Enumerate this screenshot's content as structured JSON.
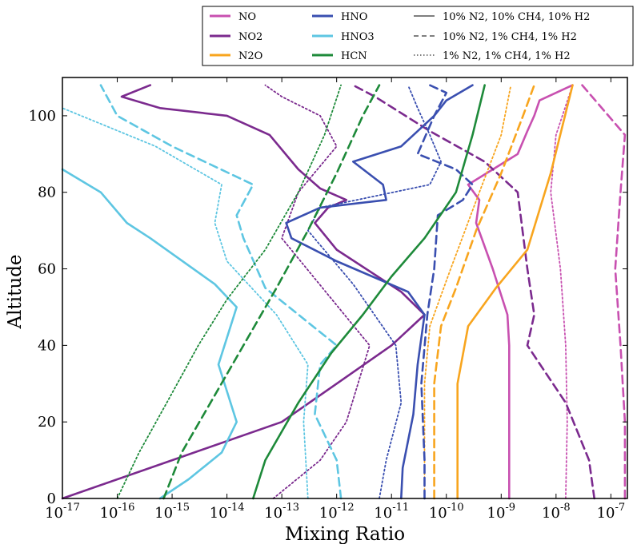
{
  "chart_data": {
    "type": "line",
    "xlabel": "Mixing Ratio",
    "ylabel": "Altitude",
    "xscale": "log",
    "xlim": [
      1e-17,
      2e-07
    ],
    "ylim": [
      0,
      110
    ],
    "grid": false,
    "legend_placement": "top-right, above plot",
    "x_ticks": [
      {
        "value": 1e-17,
        "base": "10",
        "exp": "-17"
      },
      {
        "value": 1e-16,
        "base": "10",
        "exp": "-16"
      },
      {
        "value": 1e-15,
        "base": "10",
        "exp": "-15"
      },
      {
        "value": 1e-14,
        "base": "10",
        "exp": "-14"
      },
      {
        "value": 1e-13,
        "base": "10",
        "exp": "-13"
      },
      {
        "value": 1e-12,
        "base": "10",
        "exp": "-12"
      },
      {
        "value": 1e-11,
        "base": "10",
        "exp": "-11"
      },
      {
        "value": 1e-10,
        "base": "10",
        "exp": "-10"
      },
      {
        "value": 1e-09,
        "base": "10",
        "exp": "-9"
      },
      {
        "value": 1e-08,
        "base": "10",
        "exp": "-8"
      },
      {
        "value": 1e-07,
        "base": "10",
        "exp": "-7"
      }
    ],
    "y_ticks": [
      0,
      20,
      40,
      60,
      80,
      100
    ],
    "species": [
      {
        "name": "NO",
        "color": "#c850b0"
      },
      {
        "name": "NO2",
        "color": "#7b2a8e"
      },
      {
        "name": "N2O",
        "color": "#f8a51e"
      },
      {
        "name": "HNO",
        "color": "#3a4fb0"
      },
      {
        "name": "HNO3",
        "color": "#5ec6e2"
      },
      {
        "name": "HCN",
        "color": "#1e8a3a"
      }
    ],
    "scenarios": [
      {
        "name": "10% N2, 10% CH4, 10% H2",
        "dash": "solid"
      },
      {
        "name": "10% N2, 1% CH4, 1% H2",
        "dash": "dashed"
      },
      {
        "name": "1% N2, 1% CH4, 1% H2",
        "dash": "dotted"
      }
    ],
    "series": [
      {
        "species": "NO",
        "scenario": 0,
        "points": [
          [
            1.4e-09,
            0
          ],
          [
            1.4e-09,
            40
          ],
          [
            1.3e-09,
            48
          ],
          [
            7e-10,
            60
          ],
          [
            3.5e-10,
            72
          ],
          [
            4e-10,
            78
          ],
          [
            2.5e-10,
            82
          ],
          [
            2e-09,
            90
          ],
          [
            3e-09,
            96
          ],
          [
            4e-09,
            100
          ],
          [
            5e-09,
            104
          ],
          [
            2e-08,
            108
          ]
        ]
      },
      {
        "species": "NO",
        "scenario": 1,
        "points": [
          [
            1.8e-07,
            0
          ],
          [
            1.8e-07,
            20
          ],
          [
            1.5e-07,
            40
          ],
          [
            1.2e-07,
            60
          ],
          [
            1.5e-07,
            80
          ],
          [
            1.8e-07,
            95
          ],
          [
            3e-08,
            108
          ]
        ]
      },
      {
        "species": "NO",
        "scenario": 2,
        "points": [
          [
            1.5e-08,
            0
          ],
          [
            1.6e-08,
            20
          ],
          [
            1.5e-08,
            40
          ],
          [
            1.2e-08,
            60
          ],
          [
            8e-09,
            80
          ],
          [
            1e-08,
            95
          ],
          [
            2e-08,
            108
          ]
        ]
      },
      {
        "species": "NO2",
        "scenario": 0,
        "points": [
          [
            1e-17,
            0
          ],
          [
            1e-15,
            10
          ],
          [
            1e-13,
            20
          ],
          [
            1e-12,
            30
          ],
          [
            1e-11,
            40
          ],
          [
            4e-11,
            48
          ],
          [
            1.5e-11,
            54
          ],
          [
            1e-12,
            65
          ],
          [
            4e-13,
            72
          ],
          [
            7e-13,
            76
          ],
          [
            1.5e-12,
            78
          ],
          [
            5e-13,
            81
          ],
          [
            2e-13,
            86
          ],
          [
            6e-14,
            95
          ],
          [
            1e-14,
            100
          ],
          [
            6e-16,
            102
          ],
          [
            1.2e-16,
            105
          ],
          [
            4e-16,
            108
          ]
        ]
      },
      {
        "species": "NO2",
        "scenario": 1,
        "points": [
          [
            5e-08,
            0
          ],
          [
            4e-08,
            10
          ],
          [
            1.5e-08,
            25
          ],
          [
            3e-09,
            40
          ],
          [
            4e-09,
            48
          ],
          [
            3e-09,
            60
          ],
          [
            2e-09,
            80
          ],
          [
            5e-10,
            88
          ],
          [
            5e-11,
            96
          ],
          [
            5e-12,
            105
          ],
          [
            2e-12,
            108
          ]
        ]
      },
      {
        "species": "NO2",
        "scenario": 2,
        "points": [
          [
            7e-14,
            0
          ],
          [
            5e-13,
            10
          ],
          [
            1.5e-12,
            20
          ],
          [
            4e-12,
            40
          ],
          [
            1e-13,
            68
          ],
          [
            2e-13,
            80
          ],
          [
            1e-12,
            92
          ],
          [
            5e-13,
            100
          ],
          [
            1e-13,
            105
          ],
          [
            5e-14,
            108
          ]
        ]
      },
      {
        "species": "N2O",
        "scenario": 0,
        "points": [
          [
            1.6e-10,
            0
          ],
          [
            1.6e-10,
            30
          ],
          [
            2.5e-10,
            45
          ],
          [
            8e-10,
            55
          ],
          [
            3e-09,
            65
          ],
          [
            8e-09,
            85
          ],
          [
            2e-08,
            108
          ]
        ]
      },
      {
        "species": "N2O",
        "scenario": 1,
        "points": [
          [
            6e-11,
            0
          ],
          [
            6e-11,
            30
          ],
          [
            8e-11,
            45
          ],
          [
            1.5e-10,
            55
          ],
          [
            3.5e-10,
            70
          ],
          [
            1e-09,
            85
          ],
          [
            2.5e-09,
            100
          ],
          [
            4e-09,
            108
          ]
        ]
      },
      {
        "species": "N2O",
        "scenario": 2,
        "points": [
          [
            4e-11,
            0
          ],
          [
            4e-11,
            30
          ],
          [
            5e-11,
            45
          ],
          [
            1.2e-10,
            60
          ],
          [
            4e-10,
            80
          ],
          [
            1e-09,
            95
          ],
          [
            1.5e-09,
            108
          ]
        ]
      },
      {
        "species": "HNO",
        "scenario": 0,
        "points": [
          [
            1.5e-11,
            0
          ],
          [
            1.6e-11,
            8
          ],
          [
            2.5e-11,
            22
          ],
          [
            3e-11,
            35
          ],
          [
            4e-11,
            48
          ],
          [
            2e-11,
            54
          ],
          [
            1e-12,
            62
          ],
          [
            1.5e-13,
            68
          ],
          [
            1.2e-13,
            72
          ],
          [
            5e-13,
            76
          ],
          [
            8e-12,
            78
          ],
          [
            7e-12,
            82
          ],
          [
            2e-12,
            88
          ],
          [
            1.5e-11,
            92
          ],
          [
            6e-11,
            100
          ],
          [
            1e-10,
            104
          ],
          [
            3e-10,
            108
          ]
        ]
      },
      {
        "species": "HNO",
        "scenario": 1,
        "points": [
          [
            4e-11,
            0
          ],
          [
            4e-11,
            10
          ],
          [
            3.5e-11,
            30
          ],
          [
            4.5e-11,
            48
          ],
          [
            6e-11,
            60
          ],
          [
            7e-11,
            74
          ],
          [
            2e-10,
            78
          ],
          [
            3e-10,
            82
          ],
          [
            1.5e-10,
            86
          ],
          [
            3e-11,
            90
          ],
          [
            6e-11,
            100
          ],
          [
            1e-10,
            106
          ],
          [
            5e-11,
            108
          ]
        ]
      },
      {
        "species": "HNO",
        "scenario": 2,
        "points": [
          [
            6e-12,
            0
          ],
          [
            8e-12,
            10
          ],
          [
            1.5e-11,
            25
          ],
          [
            1.2e-11,
            40
          ],
          [
            2e-12,
            56
          ],
          [
            3e-13,
            70
          ],
          [
            5e-13,
            76
          ],
          [
            5e-11,
            82
          ],
          [
            8e-11,
            88
          ],
          [
            5e-11,
            95
          ],
          [
            3e-11,
            102
          ],
          [
            2e-11,
            108
          ]
        ]
      },
      {
        "species": "HNO3",
        "scenario": 0,
        "points": [
          [
            6e-16,
            0
          ],
          [
            2e-15,
            5
          ],
          [
            8e-15,
            12
          ],
          [
            1.5e-14,
            20
          ],
          [
            1e-14,
            28
          ],
          [
            7e-15,
            35
          ],
          [
            1e-14,
            42
          ],
          [
            1.5e-14,
            50
          ],
          [
            6e-15,
            56
          ],
          [
            4e-16,
            68
          ],
          [
            1.5e-16,
            72
          ],
          [
            5e-17,
            80
          ],
          [
            1e-17,
            86
          ]
        ]
      },
      {
        "species": "HNO3",
        "scenario": 1,
        "points": [
          [
            1.2e-12,
            0
          ],
          [
            1e-12,
            10
          ],
          [
            4e-13,
            22
          ],
          [
            5e-13,
            35
          ],
          [
            1e-12,
            40
          ],
          [
            5e-14,
            55
          ],
          [
            2e-14,
            68
          ],
          [
            1.5e-14,
            74
          ],
          [
            3e-14,
            82
          ],
          [
            1e-15,
            92
          ],
          [
            1e-16,
            100
          ],
          [
            5e-17,
            108
          ]
        ]
      },
      {
        "species": "HNO3",
        "scenario": 2,
        "points": [
          [
            3e-13,
            0
          ],
          [
            2.5e-13,
            20
          ],
          [
            3e-13,
            35
          ],
          [
            8e-14,
            48
          ],
          [
            1e-14,
            62
          ],
          [
            6e-15,
            72
          ],
          [
            8e-15,
            82
          ],
          [
            5e-16,
            92
          ],
          [
            1e-17,
            102
          ]
        ]
      },
      {
        "species": "HCN",
        "scenario": 0,
        "points": [
          [
            3e-14,
            0
          ],
          [
            5e-14,
            10
          ],
          [
            2e-13,
            25
          ],
          [
            8e-13,
            38
          ],
          [
            3e-12,
            48
          ],
          [
            1e-11,
            58
          ],
          [
            4e-11,
            68
          ],
          [
            1.5e-10,
            80
          ],
          [
            3e-10,
            95
          ],
          [
            5e-10,
            108
          ]
        ]
      },
      {
        "species": "HCN",
        "scenario": 1,
        "points": [
          [
            7e-16,
            0
          ],
          [
            1.5e-15,
            12
          ],
          [
            5e-15,
            25
          ],
          [
            2e-14,
            40
          ],
          [
            8e-14,
            55
          ],
          [
            3e-13,
            70
          ],
          [
            1e-12,
            85
          ],
          [
            3e-12,
            100
          ],
          [
            6e-12,
            108
          ]
        ]
      },
      {
        "species": "HCN",
        "scenario": 2,
        "points": [
          [
            1e-16,
            0
          ],
          [
            2.5e-16,
            12
          ],
          [
            8e-16,
            25
          ],
          [
            3e-15,
            40
          ],
          [
            1e-14,
            52
          ],
          [
            5e-14,
            65
          ],
          [
            2e-13,
            80
          ],
          [
            6e-13,
            95
          ],
          [
            1.2e-12,
            108
          ]
        ]
      }
    ]
  }
}
